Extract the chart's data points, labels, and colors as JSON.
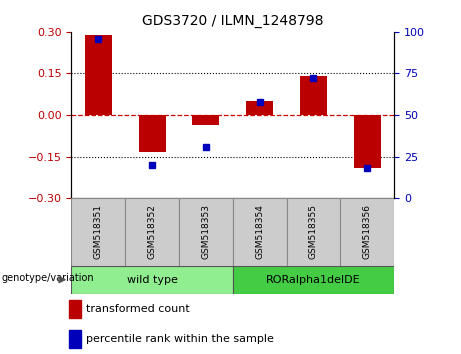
{
  "title": "GDS3720 / ILMN_1248798",
  "samples": [
    "GSM518351",
    "GSM518352",
    "GSM518353",
    "GSM518354",
    "GSM518355",
    "GSM518356"
  ],
  "bar_values": [
    0.29,
    -0.135,
    -0.035,
    0.05,
    0.14,
    -0.19
  ],
  "percentile_values": [
    96,
    20,
    31,
    58,
    72,
    18
  ],
  "bar_color": "#bb0000",
  "dot_color": "#0000bb",
  "ylim_left": [
    -0.3,
    0.3
  ],
  "ylim_right": [
    0,
    100
  ],
  "yticks_left": [
    -0.3,
    -0.15,
    0,
    0.15,
    0.3
  ],
  "yticks_right": [
    0,
    25,
    50,
    75,
    100
  ],
  "hline_color": "#cc0000",
  "dotted_lines": [
    -0.15,
    0.15
  ],
  "groups": [
    {
      "label": "wild type",
      "samples": [
        0,
        1,
        2
      ],
      "color": "#90ee90"
    },
    {
      "label": "RORalpha1delDE",
      "samples": [
        3,
        4,
        5
      ],
      "color": "#44cc44"
    }
  ],
  "group_label": "genotype/variation",
  "legend_items": [
    {
      "label": "transformed count",
      "color": "#bb0000"
    },
    {
      "label": "percentile rank within the sample",
      "color": "#0000bb"
    }
  ],
  "bar_width": 0.5,
  "figsize": [
    4.61,
    3.54
  ],
  "dpi": 100
}
